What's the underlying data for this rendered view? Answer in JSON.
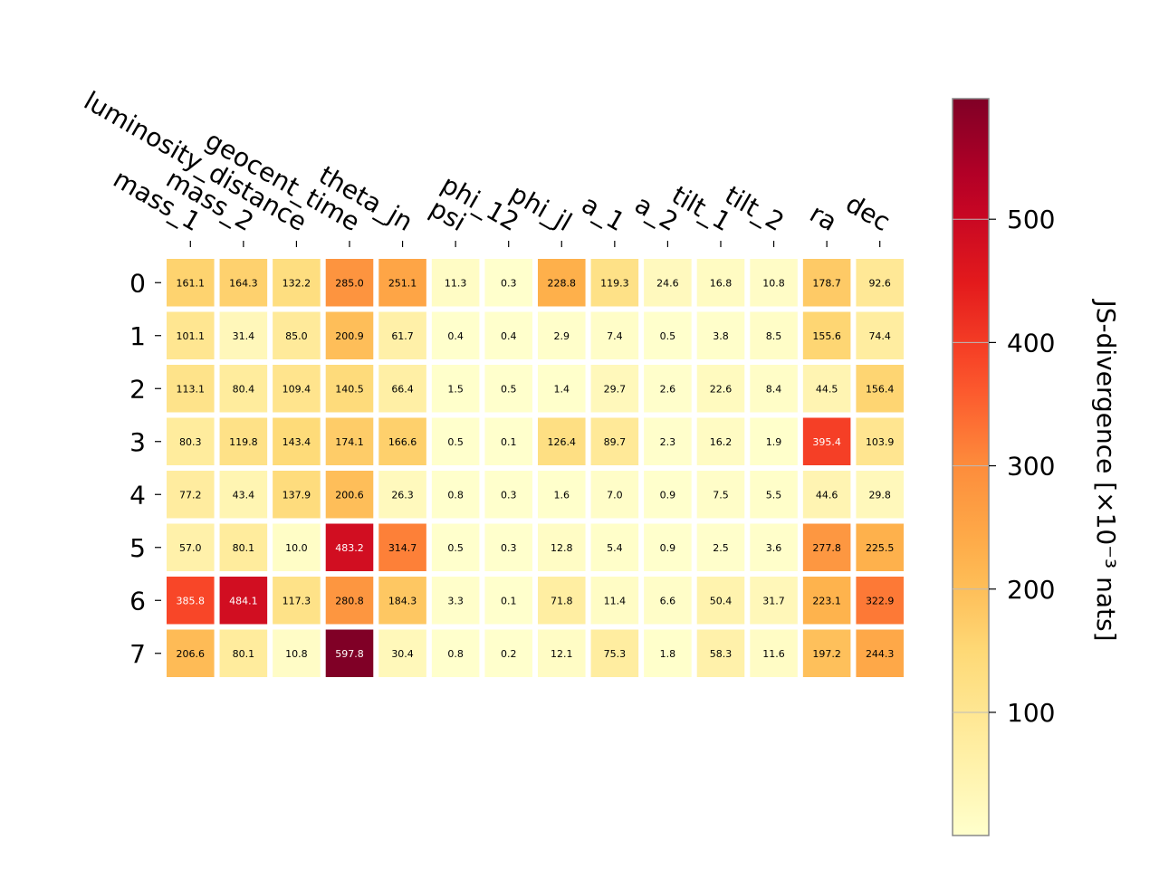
{
  "chart_data": {
    "type": "heatmap",
    "x_labels": [
      "mass_1",
      "mass_2",
      "luminosity_distance",
      "geocent_time",
      "theta_jn",
      "psi",
      "phi_12",
      "phi_jl",
      "a_1",
      "a_2",
      "tilt_1",
      "tilt_2",
      "ra",
      "dec"
    ],
    "y_labels": [
      "0",
      "1",
      "2",
      "3",
      "4",
      "5",
      "6",
      "7"
    ],
    "values": [
      [
        161.1,
        164.3,
        132.2,
        285.0,
        251.1,
        11.3,
        0.3,
        228.8,
        119.3,
        24.6,
        16.8,
        10.8,
        178.7,
        92.6
      ],
      [
        101.1,
        31.4,
        85.0,
        200.9,
        61.7,
        0.4,
        0.4,
        2.9,
        7.4,
        0.5,
        3.8,
        8.5,
        155.6,
        74.4
      ],
      [
        113.1,
        80.4,
        109.4,
        140.5,
        66.4,
        1.5,
        0.5,
        1.4,
        29.7,
        2.6,
        22.6,
        8.4,
        44.5,
        156.4
      ],
      [
        80.3,
        119.8,
        143.4,
        174.1,
        166.6,
        0.5,
        0.1,
        126.4,
        89.7,
        2.3,
        16.2,
        1.9,
        395.4,
        103.9
      ],
      [
        77.2,
        43.4,
        137.9,
        200.6,
        26.3,
        0.8,
        0.3,
        1.6,
        7.0,
        0.9,
        7.5,
        5.5,
        44.6,
        29.8
      ],
      [
        57.0,
        80.1,
        10.0,
        483.2,
        314.7,
        0.5,
        0.3,
        12.8,
        5.4,
        0.9,
        2.5,
        3.6,
        277.8,
        225.5
      ],
      [
        385.8,
        484.1,
        117.3,
        280.8,
        184.3,
        3.3,
        0.1,
        71.8,
        11.4,
        6.6,
        50.4,
        31.7,
        223.1,
        322.9
      ],
      [
        206.6,
        80.1,
        10.8,
        597.8,
        30.4,
        0.8,
        0.2,
        12.1,
        75.3,
        1.8,
        58.3,
        11.6,
        197.2,
        244.3
      ]
    ],
    "colormap": "YlOrRd",
    "vmin": 0.1,
    "vmax": 597.8,
    "colorbar": {
      "ticks": [
        100,
        200,
        300,
        400,
        500
      ],
      "label": "JS-divergence [×10⁻³ nats]"
    }
  }
}
